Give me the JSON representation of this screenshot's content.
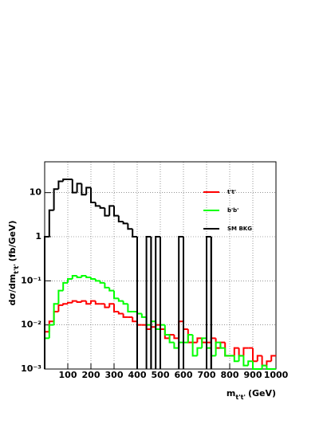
{
  "chart_data": {
    "type": "histogram",
    "x_label": "m",
    "x_label_sub": "t't'",
    "x_label_unit": "(GeV)",
    "y_label": "dσ/dm",
    "y_label_sub": "t't'",
    "y_label_unit": "(fb/GeV)",
    "xlim": [
      0,
      1000
    ],
    "ylim": [
      0.001,
      50
    ],
    "log_y": true,
    "grid": true,
    "legend": "upper right",
    "xticks": [
      100,
      200,
      300,
      400,
      500,
      600,
      700,
      800,
      900,
      1000
    ],
    "yticks": [
      {
        "value": 0.001,
        "label": "10⁻³"
      },
      {
        "value": 0.01,
        "label": "10⁻²"
      },
      {
        "value": 0.1,
        "label": "10⁻¹"
      },
      1,
      10
    ],
    "bins": [
      0,
      20,
      40,
      60,
      80,
      100,
      120,
      140,
      160,
      180,
      200,
      220,
      240,
      260,
      280,
      300,
      320,
      340,
      360,
      380,
      400,
      420,
      440,
      460,
      480,
      500,
      520,
      540,
      560,
      580,
      600,
      620,
      640,
      660,
      680,
      700,
      720,
      740,
      760,
      780,
      800,
      820,
      840,
      860,
      880,
      900,
      920,
      940,
      960,
      980,
      1000
    ],
    "series": [
      {
        "name": "t't'",
        "color": "#ff0000",
        "values": [
          0.007,
          0.012,
          0.02,
          0.028,
          0.03,
          0.032,
          0.035,
          0.033,
          0.035,
          0.03,
          0.035,
          0.03,
          0.03,
          0.025,
          0.03,
          0.02,
          0.018,
          0.015,
          0.015,
          0.012,
          0.01,
          0.01,
          0.008,
          0.009,
          0.01,
          0.008,
          0.005,
          0.006,
          0.005,
          0.012,
          0.008,
          0.004,
          0.004,
          0.005,
          0.004,
          0.004,
          0.005,
          0.003,
          0.004,
          0.002,
          0.002,
          0.003,
          0.002,
          0.003,
          0.003,
          0.0015,
          0.002,
          0.0012,
          0.0015,
          0.002
        ]
      },
      {
        "name": "b'b'",
        "color": "#00ff00",
        "values": [
          0.005,
          0.01,
          0.03,
          0.06,
          0.09,
          0.11,
          0.13,
          0.12,
          0.13,
          0.12,
          0.11,
          0.1,
          0.09,
          0.07,
          0.06,
          0.04,
          0.035,
          0.03,
          0.02,
          0.02,
          0.018,
          0.015,
          0.01,
          0.012,
          0.008,
          0.01,
          0.006,
          0.004,
          0.003,
          0.004,
          0.004,
          0.006,
          0.002,
          0.003,
          0.005,
          0.003,
          0.002,
          0.004,
          0.003,
          0.002,
          0.002,
          0.0015,
          0.002,
          0.0012,
          0.0015,
          0.001,
          0.001,
          0.0012,
          0.001,
          0.001
        ]
      },
      {
        "name": "SM BKG",
        "color": "#000000",
        "values": [
          1,
          4,
          12,
          18,
          20,
          20,
          10,
          16,
          9,
          13,
          6,
          5,
          4.5,
          3,
          5,
          3,
          2.2,
          2,
          1.5,
          1,
          null,
          null,
          1,
          null,
          1,
          null,
          null,
          null,
          null,
          1,
          null,
          null,
          null,
          null,
          null,
          1,
          null,
          null,
          null,
          null,
          null,
          null,
          null,
          null,
          null,
          null,
          null,
          null,
          null,
          null
        ]
      }
    ]
  }
}
